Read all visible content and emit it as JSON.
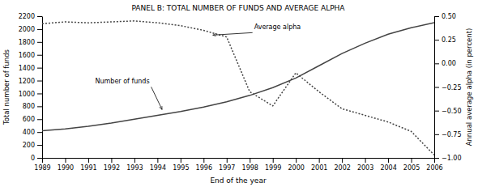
{
  "chart_data": {
    "type": "line",
    "title": "PANEL B: TOTAL NUMBER OF FUNDS AND AVERAGE ALPHA",
    "xlabel": "End of the year",
    "ylabel": "Total number of funds",
    "y2label": "Annual average alpha (in percent)",
    "x": [
      1989,
      1990,
      1991,
      1992,
      1993,
      1994,
      1995,
      1996,
      1997,
      1998,
      1999,
      2000,
      2001,
      2002,
      2003,
      2004,
      2005,
      2006
    ],
    "series": [
      {
        "color": "#444444",
        "line_style": "solid",
        "values": [
          420,
          450,
          490,
          540,
          600,
          660,
          720,
          790,
          870,
          970,
          1090,
          1240,
          1430,
          1620,
          1780,
          1920,
          2020,
          2100
        ]
      },
      {
        "color": "#444444",
        "line_style": "dotted",
        "axis": "y2",
        "values": [
          0.42,
          0.44,
          0.43,
          0.44,
          0.45,
          0.43,
          0.4,
          0.35,
          0.28,
          -0.3,
          -0.45,
          -0.1,
          -0.3,
          -0.48,
          -0.55,
          -0.62,
          -0.72,
          -0.97
        ]
      }
    ],
    "xlim": [
      1989,
      2006
    ],
    "xticks": [
      1989,
      1990,
      1991,
      1992,
      1993,
      1994,
      1995,
      1996,
      1997,
      1998,
      1999,
      2000,
      2001,
      2002,
      2003,
      2004,
      2005,
      2006
    ],
    "ylim": [
      0,
      2200
    ],
    "yticks": [
      0,
      200,
      400,
      600,
      800,
      1000,
      1200,
      1400,
      1600,
      1800,
      2000,
      2200
    ],
    "y2lim": [
      -1.0,
      0.5
    ],
    "y2ticks": [
      {
        "value": -1.0,
        "label": "−1.00"
      },
      {
        "value": -0.75,
        "label": "−0.75"
      },
      {
        "value": -0.5,
        "label": "−0.50"
      },
      {
        "value": -0.25,
        "label": "−0.25"
      },
      {
        "value": 0,
        "label": "0.00"
      },
      {
        "value": 0.25,
        "label": "0.25"
      },
      {
        "value": 0.5,
        "label": "0.50"
      }
    ],
    "annotations": [
      {
        "text": "Average alpha",
        "x": 1996.4,
        "y": 0.3,
        "axis": "y2"
      },
      {
        "text": "Number of funds",
        "x": 1994.2,
        "y": 750
      }
    ],
    "grid": false
  }
}
